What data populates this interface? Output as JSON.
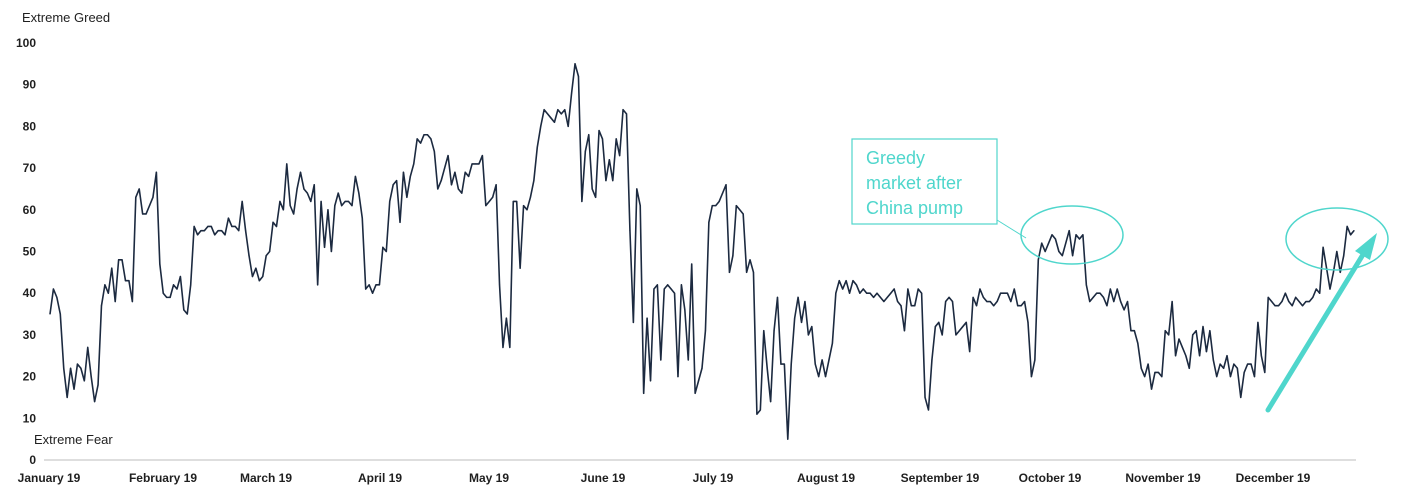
{
  "chart_data": {
    "type": "line",
    "title": "",
    "xlabel": "",
    "ylabel": "",
    "top_label": "Extreme Greed",
    "bottom_label": "Extreme Fear",
    "ylim": [
      0,
      100
    ],
    "y_ticks": [
      "0",
      "10",
      "20",
      "30",
      "40",
      "50",
      "60",
      "70",
      "80",
      "90",
      "100"
    ],
    "x_ticks": [
      "January 19",
      "February 19",
      "March 19",
      "April 19",
      "May 19",
      "June 19",
      "July 19",
      "August 19",
      "September 19",
      "October 19",
      "November 19",
      "December 19"
    ],
    "grid": false,
    "line_color": "#1c2a40",
    "accent_color": "#4fd6cc",
    "annotation": {
      "lines": [
        "Greedy",
        "market after",
        "China pump"
      ]
    },
    "series": [
      {
        "values": [
          35,
          41,
          39,
          35,
          22,
          15,
          22,
          17,
          23,
          22,
          19,
          27,
          20,
          14,
          18,
          37,
          42,
          40,
          46,
          38,
          48,
          48,
          43,
          43,
          38,
          63,
          65,
          59,
          59,
          61,
          63,
          69,
          47,
          40,
          39,
          39,
          42,
          41,
          44,
          36,
          35,
          42,
          56,
          54,
          55,
          55,
          56,
          56,
          54,
          55,
          55,
          54,
          58,
          56,
          56,
          55,
          62,
          55,
          49,
          44,
          46,
          43,
          44,
          49,
          50,
          57,
          56,
          62,
          60,
          71,
          61,
          59,
          65,
          69,
          65,
          64,
          62,
          66,
          42,
          62,
          51,
          60,
          50,
          61,
          64,
          61,
          62,
          62,
          61,
          68,
          64,
          58,
          41,
          42,
          40,
          42,
          42,
          51,
          50,
          62,
          66,
          67,
          57,
          69,
          63,
          68,
          71,
          77,
          76,
          78,
          78,
          77,
          74,
          65,
          67,
          70,
          73,
          66,
          69,
          65,
          64,
          69,
          68,
          71,
          71,
          71,
          73,
          61,
          62,
          63,
          66,
          42,
          27,
          34,
          27,
          62,
          62,
          46,
          61,
          60,
          63,
          67,
          75,
          80,
          84,
          83,
          82,
          81,
          84,
          83,
          84,
          80,
          88,
          95,
          92,
          62,
          74,
          78,
          65,
          63,
          79,
          77,
          67,
          72,
          67,
          77,
          73,
          84,
          83,
          55,
          33,
          65,
          61,
          16,
          34,
          19,
          41,
          42,
          24,
          41,
          42,
          41,
          40,
          20,
          42,
          36,
          24,
          47,
          16,
          19,
          22,
          31,
          57,
          61,
          61,
          62,
          64,
          66,
          45,
          49,
          61,
          60,
          59,
          45,
          48,
          45,
          11,
          12,
          31,
          22,
          14,
          31,
          39,
          23,
          23,
          5,
          23,
          34,
          39,
          33,
          38,
          30,
          32,
          23,
          20,
          24,
          20,
          24,
          28,
          40,
          43,
          41,
          43,
          40,
          43,
          42,
          40,
          41,
          40,
          40,
          39,
          40,
          39,
          38,
          39,
          40,
          41,
          38,
          37,
          31,
          41,
          37,
          37,
          41,
          40,
          15,
          12,
          24,
          32,
          33,
          30,
          38,
          39,
          38,
          30,
          31,
          32,
          33,
          26,
          39,
          37,
          41,
          39,
          38,
          38,
          37,
          38,
          40,
          40,
          40,
          38,
          41,
          37,
          37,
          38,
          33,
          20,
          24,
          48,
          52,
          50,
          52,
          54,
          53,
          50,
          49,
          52,
          55,
          49,
          54,
          53,
          54,
          42,
          38,
          39,
          40,
          40,
          39,
          37,
          41,
          38,
          41,
          38,
          36,
          38,
          31,
          31,
          28,
          22,
          20,
          23,
          17,
          21,
          21,
          20,
          31,
          30,
          38,
          25,
          29,
          27,
          25,
          22,
          30,
          31,
          25,
          32,
          26,
          31,
          24,
          20,
          23,
          22,
          25,
          20,
          23,
          22,
          15,
          21,
          23,
          23,
          20,
          33,
          25,
          21,
          39,
          38,
          37,
          37,
          38,
          40,
          38,
          37,
          39,
          38,
          37,
          38,
          38,
          39,
          41,
          40,
          51,
          46,
          41,
          45,
          50,
          45,
          49,
          56,
          54,
          55
        ]
      }
    ]
  }
}
